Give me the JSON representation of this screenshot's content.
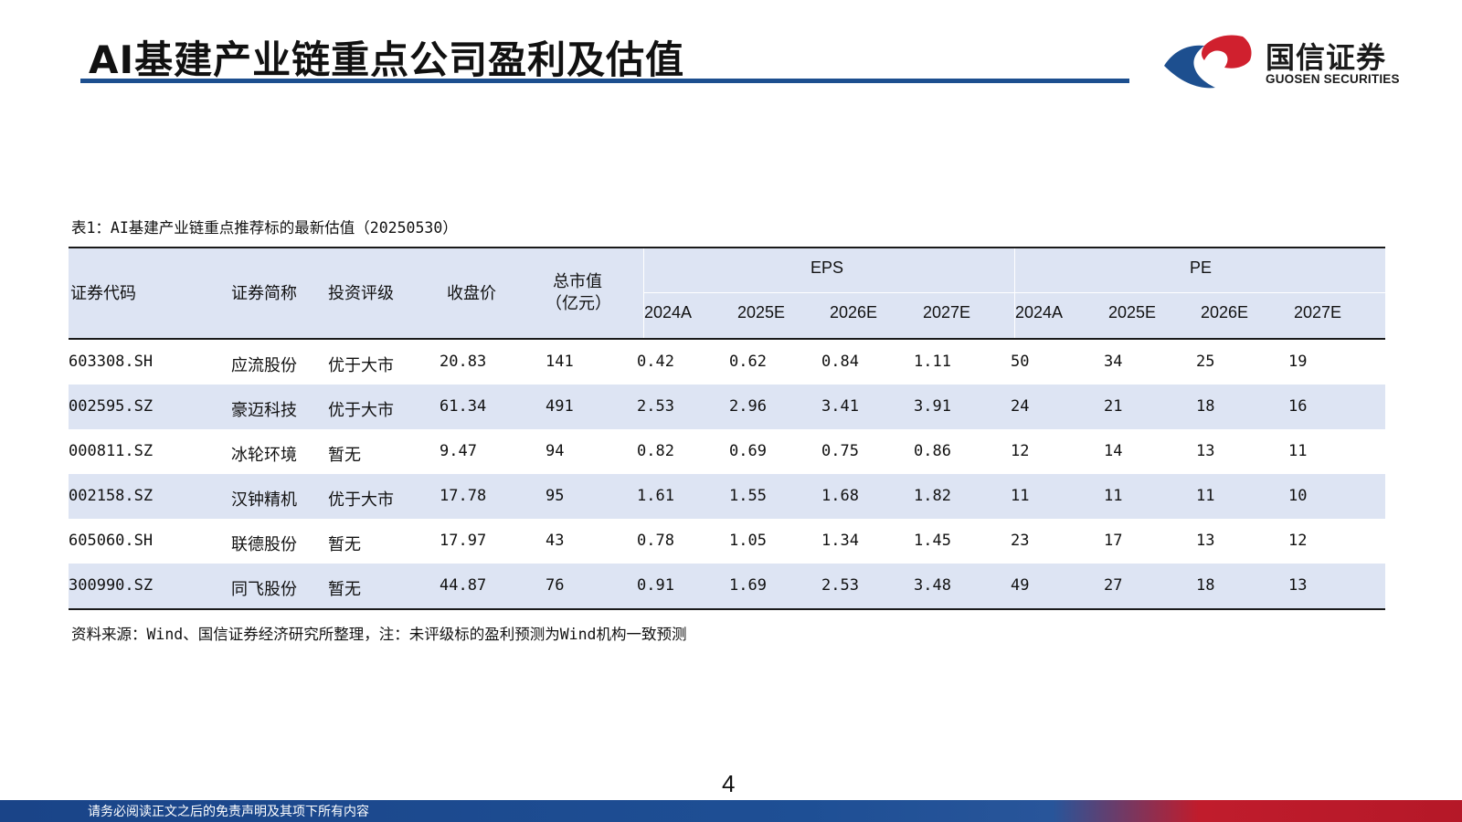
{
  "header": {
    "title": "AI基建产业链重点公司盈利及估值",
    "logo_cn": "国信证券",
    "logo_en": "GUOSEN SECURITIES"
  },
  "table": {
    "caption": "表1：AI基建产业链重点推荐标的最新估值（20250530）",
    "headers": {
      "code": "证券代码",
      "name": "证券简称",
      "rating": "投资评级",
      "close": "收盘价",
      "mcap_line1": "总市值",
      "mcap_line2": "（亿元）",
      "eps": "EPS",
      "pe": "PE",
      "years": [
        "2024A",
        "2025E",
        "2026E",
        "2027E"
      ]
    },
    "rows": [
      {
        "code": "603308.SH",
        "name": "应流股份",
        "rating": "优于大市",
        "close": "20.83",
        "mcap": "141",
        "eps": [
          "0.42",
          "0.62",
          "0.84",
          "1.11"
        ],
        "pe": [
          "50",
          "34",
          "25",
          "19"
        ]
      },
      {
        "code": "002595.SZ",
        "name": "豪迈科技",
        "rating": "优于大市",
        "close": "61.34",
        "mcap": "491",
        "eps": [
          "2.53",
          "2.96",
          "3.41",
          "3.91"
        ],
        "pe": [
          "24",
          "21",
          "18",
          "16"
        ]
      },
      {
        "code": "000811.SZ",
        "name": "冰轮环境",
        "rating": "暂无",
        "close": "9.47",
        "mcap": "94",
        "eps": [
          "0.82",
          "0.69",
          "0.75",
          "0.86"
        ],
        "pe": [
          "12",
          "14",
          "13",
          "11"
        ]
      },
      {
        "code": "002158.SZ",
        "name": "汉钟精机",
        "rating": "优于大市",
        "close": "17.78",
        "mcap": "95",
        "eps": [
          "1.61",
          "1.55",
          "1.68",
          "1.82"
        ],
        "pe": [
          "11",
          "11",
          "11",
          "10"
        ]
      },
      {
        "code": "605060.SH",
        "name": "联德股份",
        "rating": "暂无",
        "close": "17.97",
        "mcap": "43",
        "eps": [
          "0.78",
          "1.05",
          "1.34",
          "1.45"
        ],
        "pe": [
          "23",
          "17",
          "13",
          "12"
        ]
      },
      {
        "code": "300990.SZ",
        "name": "同飞股份",
        "rating": "暂无",
        "close": "44.87",
        "mcap": "76",
        "eps": [
          "0.91",
          "1.69",
          "2.53",
          "3.48"
        ],
        "pe": [
          "49",
          "27",
          "18",
          "13"
        ]
      }
    ],
    "source": "资料来源：Wind、国信证券经济研究所整理，注：未评级标的盈利预测为Wind机构一致预测"
  },
  "page_number": "4",
  "footer": {
    "disclaimer": "请务必阅读正文之后的免责声明及其项下所有内容"
  },
  "colors": {
    "brand_blue": "#1d4f8f",
    "brand_red": "#d0202e",
    "row_band": "#dde4f3"
  }
}
